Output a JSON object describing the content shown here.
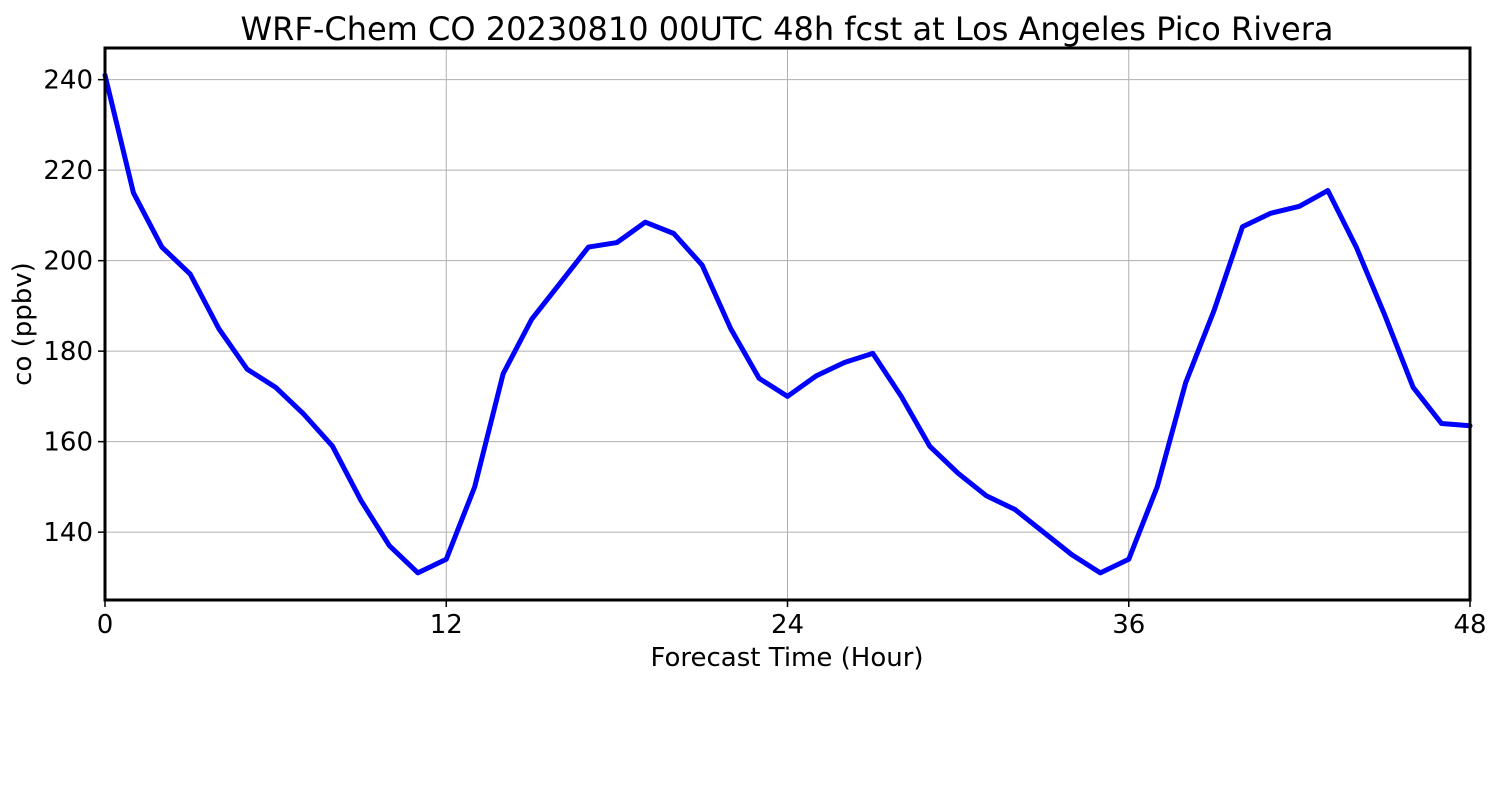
{
  "chart_data": {
    "type": "line",
    "title": "WRF-Chem CO  20230810 00UTC 48h fcst at Los Angeles Pico Rivera",
    "xlabel": "Forecast Time (Hour)",
    "ylabel": "co  (ppbv)",
    "xlim": [
      0,
      48
    ],
    "ylim": [
      125,
      247
    ],
    "xticks": [
      0,
      12,
      24,
      36,
      48
    ],
    "yticks": [
      140,
      160,
      180,
      200,
      220,
      240
    ],
    "grid": true,
    "series": [
      {
        "color": "#0000ff",
        "x": [
          0,
          1,
          2,
          3,
          4,
          5,
          6,
          7,
          8,
          9,
          10,
          11,
          12,
          13,
          14,
          15,
          16,
          17,
          18,
          19,
          20,
          21,
          22,
          23,
          24,
          25,
          26,
          27,
          28,
          29,
          30,
          31,
          32,
          33,
          34,
          35,
          36,
          37,
          38,
          39,
          40,
          41,
          42,
          43,
          44,
          45,
          46,
          47,
          48
        ],
        "y": [
          241,
          215,
          203,
          197,
          185,
          176,
          172,
          166,
          159,
          147,
          137,
          131,
          134,
          150,
          175,
          187,
          195,
          203,
          204,
          208.5,
          206,
          199,
          185,
          174,
          170,
          174.5,
          177.5,
          179.5,
          170,
          159,
          153,
          148,
          145,
          140,
          135,
          131,
          134,
          150,
          173,
          189,
          207.5,
          210.5,
          212,
          215.5,
          203,
          188,
          172,
          164,
          163.5
        ]
      }
    ]
  }
}
